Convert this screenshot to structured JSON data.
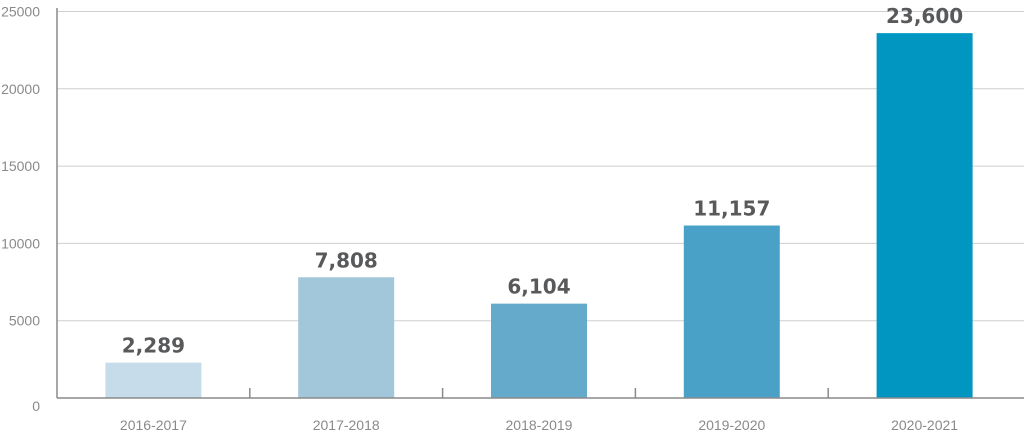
{
  "chart_data": {
    "type": "bar",
    "title": "",
    "xlabel": "",
    "ylabel": "",
    "categories": [
      "2016-2017",
      "2017-2018",
      "2018-2019",
      "2019-2020",
      "2020-2021"
    ],
    "values": [
      2289,
      7808,
      6104,
      11157,
      23600
    ],
    "data_labels": [
      "2,289",
      "7,808",
      "6,104",
      "11,157",
      "23,600"
    ],
    "colors": [
      "#c6dcea",
      "#a2c6da",
      "#66aacb",
      "#4aa1c8",
      "#0096c1"
    ],
    "ylim": [
      0,
      25000
    ],
    "yticks": [
      0,
      5000,
      10000,
      15000,
      20000,
      25000
    ],
    "ytick_labels": [
      "0",
      "5000",
      "10000",
      "15000",
      "20000",
      "25000"
    ],
    "grid": true,
    "legend": "none"
  }
}
